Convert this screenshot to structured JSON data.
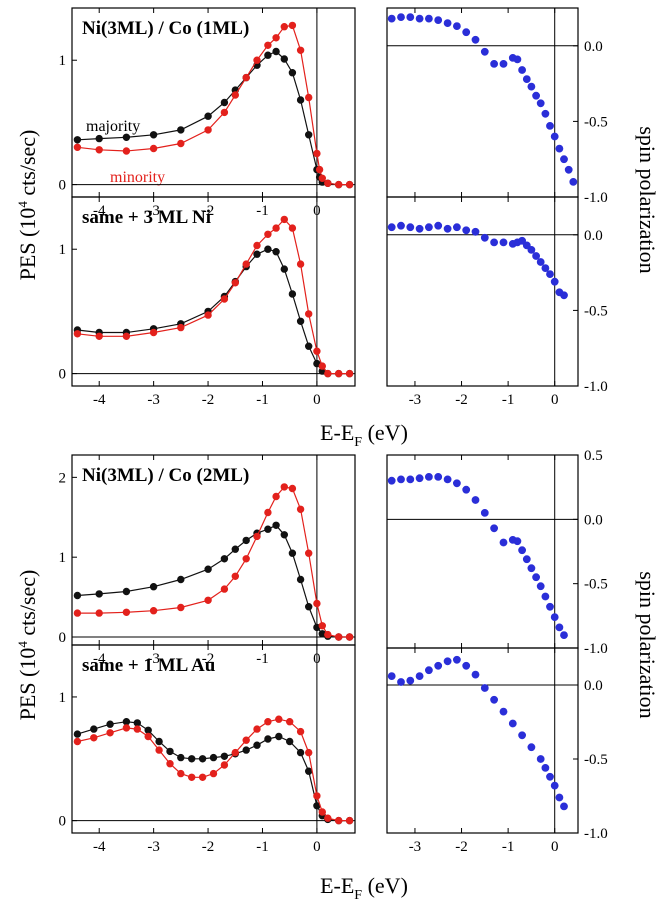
{
  "labels": {
    "pes_ylabel": "PES (10",
    "pes_ylabel_sup": "4",
    "pes_ylabel_tail": " cts/sec)",
    "spin_ylabel": "spin polarization",
    "xlabel_main": "E-E",
    "xlabel_sub": "F",
    "xlabel_tail": " (eV)",
    "majority": "majority",
    "minority": "minority"
  },
  "colors": {
    "majority": "#111111",
    "minority": "#e3211c",
    "spin": "#2a2ed8",
    "axis": "#000000"
  },
  "chart_data": [
    {
      "type": "line",
      "title": "Ni(3ML) / Co (1ML)",
      "xlim": [
        -4.5,
        0.7
      ],
      "ylim": [
        -0.1,
        1.42
      ],
      "xticks": [
        "-4",
        "-3",
        "-2",
        "-1",
        "0"
      ],
      "yticks": [
        "0",
        "1"
      ],
      "xlabel": "",
      "ylabel": "PES (10^4 cts/sec)",
      "legend": [
        "majority",
        "minority"
      ],
      "series": [
        {
          "name": "majority",
          "x": [
            -4.4,
            -4.0,
            -3.5,
            -3.0,
            -2.5,
            -2.0,
            -1.7,
            -1.5,
            -1.3,
            -1.1,
            -0.9,
            -0.75,
            -0.6,
            -0.45,
            -0.3,
            -0.15,
            0.0,
            0.05,
            0.1,
            0.2,
            0.4,
            0.6
          ],
          "y": [
            0.36,
            0.37,
            0.38,
            0.4,
            0.44,
            0.55,
            0.66,
            0.76,
            0.86,
            0.96,
            1.04,
            1.07,
            1.01,
            0.9,
            0.68,
            0.4,
            0.12,
            0.06,
            0.02,
            0.01,
            0.0,
            0.0
          ]
        },
        {
          "name": "minority",
          "x": [
            -4.4,
            -4.0,
            -3.5,
            -3.0,
            -2.5,
            -2.0,
            -1.7,
            -1.5,
            -1.3,
            -1.1,
            -0.9,
            -0.75,
            -0.6,
            -0.45,
            -0.3,
            -0.15,
            0.0,
            0.05,
            0.1,
            0.2,
            0.4,
            0.6
          ],
          "y": [
            0.3,
            0.28,
            0.27,
            0.29,
            0.33,
            0.44,
            0.58,
            0.72,
            0.86,
            1.0,
            1.12,
            1.18,
            1.27,
            1.28,
            1.08,
            0.7,
            0.25,
            0.12,
            0.05,
            0.01,
            0.0,
            0.0
          ]
        }
      ]
    },
    {
      "type": "line",
      "title": "same + 3 ML Ni",
      "xlim": [
        -4.5,
        0.7
      ],
      "ylim": [
        -0.1,
        1.42
      ],
      "xticks": [
        "-4",
        "-3",
        "-2",
        "-1",
        "0"
      ],
      "yticks": [
        "0",
        "1"
      ],
      "xlabel": "E-EF (eV)",
      "series": [
        {
          "name": "majority",
          "x": [
            -4.4,
            -4.0,
            -3.5,
            -3.0,
            -2.5,
            -2.0,
            -1.7,
            -1.5,
            -1.3,
            -1.1,
            -0.9,
            -0.75,
            -0.6,
            -0.45,
            -0.3,
            -0.15,
            0.0,
            0.1,
            0.2,
            0.4,
            0.6
          ],
          "y": [
            0.35,
            0.33,
            0.33,
            0.36,
            0.4,
            0.5,
            0.62,
            0.74,
            0.86,
            0.96,
            1.0,
            0.98,
            0.84,
            0.64,
            0.42,
            0.22,
            0.08,
            0.02,
            0.0,
            0.0,
            0.0
          ]
        },
        {
          "name": "minority",
          "x": [
            -4.4,
            -4.0,
            -3.5,
            -3.0,
            -2.5,
            -2.0,
            -1.7,
            -1.5,
            -1.3,
            -1.1,
            -0.9,
            -0.75,
            -0.6,
            -0.45,
            -0.3,
            -0.15,
            0.0,
            0.1,
            0.2,
            0.4,
            0.6
          ],
          "y": [
            0.32,
            0.3,
            0.3,
            0.33,
            0.37,
            0.47,
            0.6,
            0.73,
            0.88,
            1.03,
            1.12,
            1.17,
            1.24,
            1.17,
            0.88,
            0.48,
            0.18,
            0.06,
            0.0,
            0.0,
            0.0
          ]
        }
      ]
    },
    {
      "type": "scatter",
      "title": "",
      "xlim": [
        -3.6,
        0.5
      ],
      "ylim": [
        -1.0,
        0.25
      ],
      "xticks": [],
      "yticks": [
        "0.0",
        "-0.5",
        "-1.0"
      ],
      "ylabel": "spin polarization",
      "series": [
        {
          "name": "",
          "x": [
            -3.5,
            -3.3,
            -3.1,
            -2.9,
            -2.7,
            -2.5,
            -2.3,
            -2.1,
            -1.9,
            -1.7,
            -1.5,
            -1.3,
            -1.1,
            -0.9,
            -0.8,
            -0.7,
            -0.6,
            -0.5,
            -0.4,
            -0.3,
            -0.2,
            -0.1,
            0.0,
            0.1,
            0.2,
            0.3,
            0.4
          ],
          "y": [
            0.18,
            0.19,
            0.19,
            0.18,
            0.18,
            0.17,
            0.15,
            0.13,
            0.09,
            0.04,
            -0.04,
            -0.12,
            -0.12,
            -0.08,
            -0.09,
            -0.16,
            -0.22,
            -0.27,
            -0.33,
            -0.38,
            -0.45,
            -0.53,
            -0.6,
            -0.68,
            -0.75,
            -0.82,
            -0.9
          ]
        }
      ]
    },
    {
      "type": "scatter",
      "title": "",
      "xlim": [
        -3.6,
        0.5
      ],
      "ylim": [
        -1.0,
        0.25
      ],
      "xticks": [
        "-3",
        "-2",
        "-1",
        "0"
      ],
      "yticks": [
        "0.0",
        "-0.5",
        "-1.0"
      ],
      "series": [
        {
          "name": "",
          "x": [
            -3.5,
            -3.3,
            -3.1,
            -2.9,
            -2.7,
            -2.5,
            -2.3,
            -2.1,
            -1.9,
            -1.7,
            -1.5,
            -1.3,
            -1.1,
            -0.9,
            -0.8,
            -0.7,
            -0.6,
            -0.5,
            -0.4,
            -0.3,
            -0.2,
            -0.1,
            0.0,
            0.1,
            0.2
          ],
          "y": [
            0.05,
            0.06,
            0.05,
            0.04,
            0.05,
            0.06,
            0.04,
            0.05,
            0.03,
            0.02,
            -0.02,
            -0.05,
            -0.05,
            -0.06,
            -0.05,
            -0.04,
            -0.07,
            -0.1,
            -0.14,
            -0.18,
            -0.22,
            -0.26,
            -0.31,
            -0.38,
            -0.4
          ]
        }
      ]
    },
    {
      "type": "line",
      "title": "Ni(3ML) / Co (2ML)",
      "xlim": [
        -4.5,
        0.7
      ],
      "ylim": [
        -0.1,
        2.28
      ],
      "xticks": [
        "-4",
        "-3",
        "-2",
        "-1",
        "0"
      ],
      "yticks": [
        "0",
        "1",
        "2"
      ],
      "series": [
        {
          "name": "majority",
          "x": [
            -4.4,
            -4.0,
            -3.5,
            -3.0,
            -2.5,
            -2.0,
            -1.7,
            -1.5,
            -1.3,
            -1.1,
            -0.9,
            -0.75,
            -0.6,
            -0.45,
            -0.3,
            -0.15,
            0.0,
            0.1,
            0.2,
            0.4,
            0.6
          ],
          "y": [
            0.52,
            0.54,
            0.57,
            0.63,
            0.72,
            0.85,
            0.98,
            1.1,
            1.21,
            1.3,
            1.35,
            1.4,
            1.28,
            1.05,
            0.72,
            0.38,
            0.12,
            0.04,
            0.01,
            0.0,
            0.0
          ]
        },
        {
          "name": "minority",
          "x": [
            -4.4,
            -4.0,
            -3.5,
            -3.0,
            -2.5,
            -2.0,
            -1.7,
            -1.5,
            -1.3,
            -1.1,
            -0.9,
            -0.75,
            -0.6,
            -0.45,
            -0.3,
            -0.15,
            0.0,
            0.1,
            0.2,
            0.4,
            0.6
          ],
          "y": [
            0.3,
            0.3,
            0.31,
            0.33,
            0.37,
            0.46,
            0.6,
            0.76,
            0.98,
            1.26,
            1.56,
            1.76,
            1.88,
            1.86,
            1.6,
            1.05,
            0.42,
            0.14,
            0.03,
            0.0,
            0.0
          ]
        }
      ]
    },
    {
      "type": "line",
      "title": "same + 1 ML Au",
      "xlim": [
        -4.5,
        0.7
      ],
      "ylim": [
        -0.1,
        1.42
      ],
      "xticks": [
        "-4",
        "-3",
        "-2",
        "-1",
        "0"
      ],
      "yticks": [
        "0",
        "1"
      ],
      "xlabel": "E-EF (eV)",
      "series": [
        {
          "name": "majority",
          "x": [
            -4.4,
            -4.1,
            -3.8,
            -3.5,
            -3.3,
            -3.1,
            -2.9,
            -2.7,
            -2.5,
            -2.3,
            -2.1,
            -1.9,
            -1.7,
            -1.5,
            -1.3,
            -1.1,
            -0.9,
            -0.7,
            -0.5,
            -0.3,
            -0.15,
            0.0,
            0.1,
            0.2,
            0.4,
            0.6
          ],
          "y": [
            0.7,
            0.74,
            0.78,
            0.8,
            0.79,
            0.73,
            0.64,
            0.56,
            0.51,
            0.5,
            0.5,
            0.51,
            0.52,
            0.54,
            0.57,
            0.61,
            0.66,
            0.68,
            0.64,
            0.55,
            0.4,
            0.12,
            0.04,
            0.01,
            0.0,
            0.0
          ]
        },
        {
          "name": "minority",
          "x": [
            -4.4,
            -4.1,
            -3.8,
            -3.5,
            -3.3,
            -3.1,
            -2.9,
            -2.7,
            -2.5,
            -2.3,
            -2.1,
            -1.9,
            -1.7,
            -1.5,
            -1.3,
            -1.1,
            -0.9,
            -0.7,
            -0.5,
            -0.3,
            -0.15,
            0.0,
            0.1,
            0.2,
            0.4,
            0.6
          ],
          "y": [
            0.64,
            0.67,
            0.71,
            0.75,
            0.74,
            0.68,
            0.57,
            0.46,
            0.38,
            0.35,
            0.35,
            0.38,
            0.45,
            0.55,
            0.65,
            0.74,
            0.8,
            0.82,
            0.8,
            0.72,
            0.55,
            0.2,
            0.07,
            0.02,
            0.0,
            0.0
          ]
        }
      ]
    },
    {
      "type": "scatter",
      "title": "",
      "xlim": [
        -3.6,
        0.5
      ],
      "ylim": [
        -1.0,
        0.5
      ],
      "xticks": [],
      "yticks": [
        "0.5",
        "0.0",
        "-0.5",
        "-1.0"
      ],
      "ylabel": "spin polarization",
      "series": [
        {
          "name": "",
          "x": [
            -3.5,
            -3.3,
            -3.1,
            -2.9,
            -2.7,
            -2.5,
            -2.3,
            -2.1,
            -1.9,
            -1.7,
            -1.5,
            -1.3,
            -1.1,
            -0.9,
            -0.8,
            -0.7,
            -0.6,
            -0.5,
            -0.4,
            -0.3,
            -0.2,
            -0.1,
            0.0,
            0.1,
            0.2
          ],
          "y": [
            0.3,
            0.31,
            0.31,
            0.32,
            0.33,
            0.33,
            0.31,
            0.28,
            0.23,
            0.15,
            0.05,
            -0.07,
            -0.18,
            -0.16,
            -0.17,
            -0.24,
            -0.31,
            -0.38,
            -0.45,
            -0.52,
            -0.6,
            -0.68,
            -0.76,
            -0.84,
            -0.9
          ]
        }
      ]
    },
    {
      "type": "scatter",
      "title": "",
      "xlim": [
        -3.6,
        0.5
      ],
      "ylim": [
        -1.0,
        0.25
      ],
      "xticks": [
        "-3",
        "-2",
        "-1",
        "0"
      ],
      "yticks": [
        "0.0",
        "-0.5",
        "-1.0"
      ],
      "xlabel": "E-EF (eV)",
      "series": [
        {
          "name": "",
          "x": [
            -3.5,
            -3.3,
            -3.1,
            -2.9,
            -2.7,
            -2.5,
            -2.3,
            -2.1,
            -1.9,
            -1.7,
            -1.5,
            -1.3,
            -1.1,
            -0.9,
            -0.7,
            -0.5,
            -0.3,
            -0.2,
            -0.1,
            0.0,
            0.1,
            0.2
          ],
          "y": [
            0.06,
            0.02,
            0.03,
            0.06,
            0.1,
            0.13,
            0.16,
            0.17,
            0.13,
            0.07,
            -0.02,
            -0.1,
            -0.18,
            -0.26,
            -0.34,
            -0.42,
            -0.5,
            -0.56,
            -0.62,
            -0.68,
            -0.76,
            -0.82
          ]
        }
      ]
    }
  ]
}
